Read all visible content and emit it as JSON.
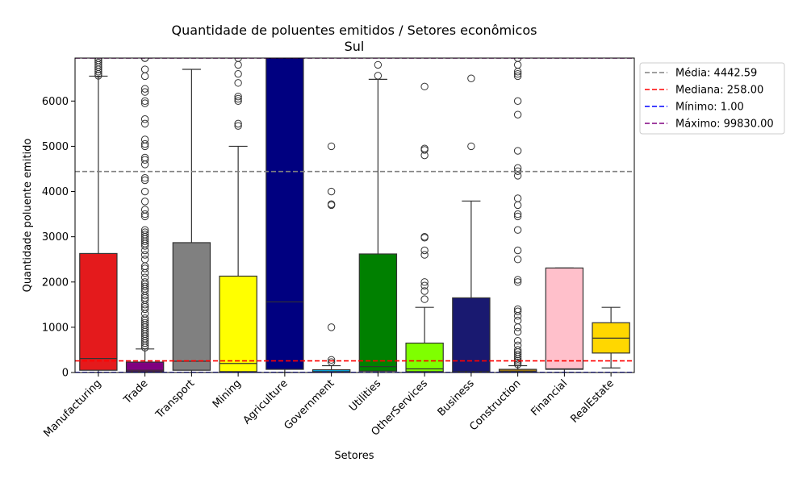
{
  "chart_data": {
    "type": "box",
    "title": "Quantidade de poluentes emitidos / Setores econômicos",
    "subtitle": "Sul",
    "xlabel": "Setores",
    "ylabel": "Quantidade poluente emitido",
    "ylim": [
      0,
      6950
    ],
    "yticks": [
      0,
      1000,
      2000,
      3000,
      4000,
      5000,
      6000
    ],
    "grid": false,
    "legend_position": "upper-right-outside",
    "categories": [
      "Manufacturing",
      "Trade",
      "Transport",
      "Mining",
      "Agriculture",
      "Government",
      "Utilities",
      "OtherServices",
      "Business",
      "Construction",
      "Financial",
      "RealEstate"
    ],
    "boxes": [
      {
        "name": "Manufacturing",
        "color": "#e41a1c",
        "q1": 50,
        "median": 310,
        "q3": 2630,
        "whisker_low": 1,
        "whisker_high": 6550,
        "outliers": [
          6560,
          6600,
          6650,
          6700,
          6750,
          6800,
          6850,
          6900,
          6950
        ]
      },
      {
        "name": "Trade",
        "color": "#800080",
        "q1": 20,
        "median": 50,
        "q3": 230,
        "whisker_low": 1,
        "whisker_high": 520,
        "outliers": [
          550,
          600,
          650,
          700,
          750,
          800,
          850,
          900,
          950,
          1000,
          1050,
          1100,
          1150,
          1200,
          1300,
          1400,
          1450,
          1500,
          1600,
          1650,
          1700,
          1800,
          1850,
          1900,
          1950,
          2000,
          2100,
          2200,
          2300,
          2350,
          2500,
          2600,
          2700,
          2800,
          2850,
          2900,
          2950,
          3000,
          3050,
          3100,
          3150,
          3450,
          3500,
          3600,
          3780,
          4000,
          4250,
          4300,
          4600,
          4700,
          4750,
          5000,
          5050,
          5150,
          5500,
          5600,
          5950,
          6000,
          6200,
          6270,
          6550,
          6700,
          6950,
          7000
        ]
      },
      {
        "name": "Transport",
        "color": "#808080",
        "q1": 50,
        "median": 250,
        "q3": 2870,
        "whisker_low": 1,
        "whisker_high": 6700,
        "outliers": []
      },
      {
        "name": "Mining",
        "color": "#ffff00",
        "q1": 20,
        "median": 200,
        "q3": 2130,
        "whisker_low": 1,
        "whisker_high": 5000,
        "outliers": [
          5450,
          5500,
          6000,
          6050,
          6100,
          6400,
          6600,
          6800,
          6950
        ]
      },
      {
        "name": "Agriculture",
        "color": "#000080",
        "q1": 70,
        "median": 1560,
        "q3": 7000,
        "whisker_low": 1,
        "whisker_high": 7000,
        "outliers": []
      },
      {
        "name": "Government",
        "color": "#00bfff",
        "q1": 5,
        "median": 20,
        "q3": 60,
        "whisker_low": 1,
        "whisker_high": 150,
        "outliers": [
          230,
          280,
          1000,
          3700,
          3720,
          4000,
          5000
        ]
      },
      {
        "name": "Utilities",
        "color": "#008000",
        "q1": 30,
        "median": 130,
        "q3": 2620,
        "whisker_low": 1,
        "whisker_high": 6480,
        "outliers": [
          6560,
          6800
        ]
      },
      {
        "name": "OtherServices",
        "color": "#7fff00",
        "q1": 20,
        "median": 80,
        "q3": 650,
        "whisker_low": 1,
        "whisker_high": 1440,
        "outliers": [
          1620,
          1800,
          1920,
          2000,
          2600,
          2700,
          2980,
          3000,
          4800,
          4920,
          4950,
          6320
        ]
      },
      {
        "name": "Business",
        "color": "#191970",
        "q1": 5,
        "median": 20,
        "q3": 1650,
        "whisker_low": 1,
        "whisker_high": 3790,
        "outliers": [
          5000,
          6500
        ]
      },
      {
        "name": "Construction",
        "color": "#b8860b",
        "q1": 10,
        "median": 30,
        "q3": 70,
        "whisker_low": 1,
        "whisker_high": 150,
        "outliers": [
          180,
          220,
          260,
          300,
          350,
          400,
          450,
          500,
          600,
          700,
          900,
          1000,
          1150,
          1250,
          1350,
          1400,
          2000,
          2050,
          2500,
          2700,
          3150,
          3450,
          3500,
          3700,
          3850,
          4350,
          4450,
          4520,
          4900,
          5700,
          6000,
          6550,
          6600,
          6650,
          6800,
          6950
        ]
      },
      {
        "name": "Financial",
        "color": "#ffc0cb",
        "q1": 70,
        "median": 80,
        "q3": 2310,
        "whisker_low": 1,
        "whisker_high": 2310,
        "outliers": []
      },
      {
        "name": "RealEstate",
        "color": "#ffd700",
        "q1": 430,
        "median": 760,
        "q3": 1100,
        "whisker_low": 100,
        "whisker_high": 1440,
        "outliers": []
      }
    ],
    "reference_lines": [
      {
        "label": "Média: 4442.59",
        "value": 4442.59,
        "color": "#808080"
      },
      {
        "label": "Mediana: 258.00",
        "value": 258.0,
        "color": "#ff0000"
      },
      {
        "label": "Mínimo: 1.00",
        "value": 1.0,
        "color": "#0000ff"
      },
      {
        "label": "Máximo: 99830.00",
        "value": 99830.0,
        "color": "#800080"
      }
    ]
  }
}
